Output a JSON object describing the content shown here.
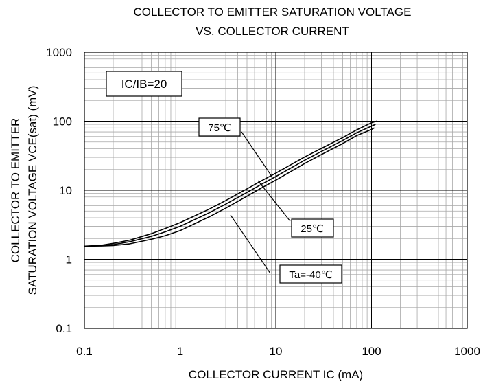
{
  "chart_data": {
    "type": "line",
    "title": [
      "COLLECTOR TO EMITTER SATURATION VOLTAGE",
      "VS. COLLECTOR CURRENT"
    ],
    "xlabel": "COLLECTOR CURRENT IC (mA)",
    "ylabel": [
      "COLLECTOR TO EMITTER",
      "SATURATION VOLTAGE VCE(sat) (mV)"
    ],
    "xscale": "log",
    "yscale": "log",
    "xlim": [
      0.1,
      1000
    ],
    "ylim": [
      0.1,
      1000
    ],
    "xticks": [
      "0.1",
      "1",
      "10",
      "100",
      "1000"
    ],
    "yticks": [
      "0.1",
      "1",
      "10",
      "100",
      "1000"
    ],
    "grid": true,
    "condition_label": "IC/IB=20",
    "series": [
      {
        "name": "75℃",
        "x": [
          0.1,
          0.15,
          0.2,
          0.3,
          0.5,
          0.7,
          1,
          2,
          3,
          5,
          7,
          10,
          20,
          30,
          50,
          70,
          100,
          115
        ],
        "y": [
          1.55,
          1.6,
          1.7,
          1.9,
          2.35,
          2.8,
          3.4,
          5.3,
          7.1,
          10.5,
          13.6,
          17.7,
          30.3,
          40.5,
          58,
          75,
          95,
          101
        ]
      },
      {
        "name": "25℃",
        "x": [
          0.1,
          0.15,
          0.2,
          0.3,
          0.5,
          0.7,
          1,
          2,
          3,
          5,
          7,
          10,
          20,
          30,
          50,
          70,
          100,
          110
        ],
        "y": [
          1.55,
          1.58,
          1.63,
          1.8,
          2.15,
          2.5,
          3.0,
          4.7,
          6.3,
          9.3,
          12.1,
          15.8,
          27.2,
          36.6,
          52.5,
          68,
          85,
          90
        ]
      },
      {
        "name": "Ta=-40℃",
        "x": [
          0.1,
          0.15,
          0.2,
          0.3,
          0.5,
          0.7,
          1,
          2,
          3,
          5,
          7,
          10,
          20,
          30,
          50,
          70,
          100,
          107
        ],
        "y": [
          1.55,
          1.56,
          1.58,
          1.68,
          1.95,
          2.2,
          2.6,
          4.1,
          5.5,
          8.2,
          10.7,
          14.0,
          24.4,
          33.0,
          47.5,
          62,
          76,
          80
        ]
      }
    ],
    "annotations": [
      {
        "label": "75℃",
        "series": "75℃"
      },
      {
        "label": "25℃",
        "series": "25℃"
      },
      {
        "label": "Ta=-40℃",
        "series": "Ta=-40℃"
      }
    ]
  }
}
